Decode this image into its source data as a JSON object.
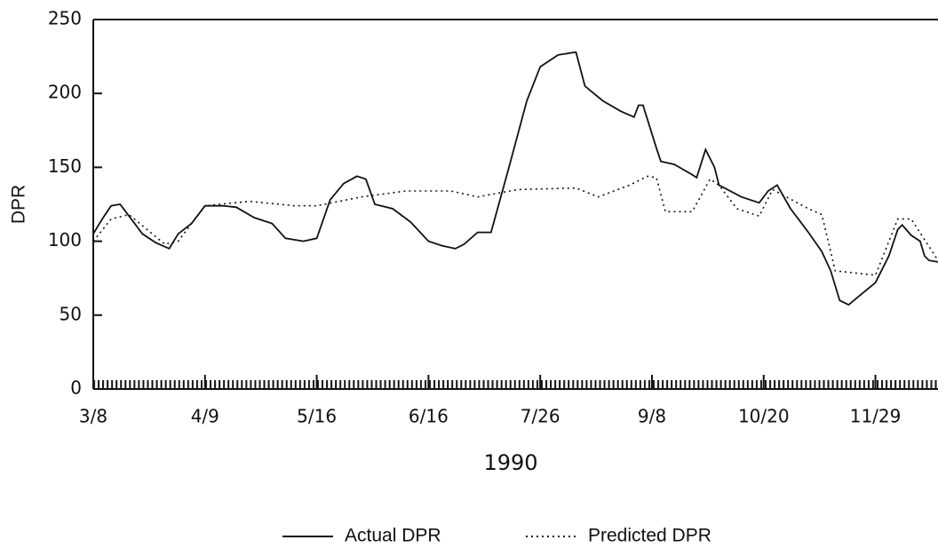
{
  "chart_data": {
    "type": "line",
    "xlabel": "1990",
    "ylabel": "DPR",
    "xlim": [
      0,
      189
    ],
    "ylim": [
      0,
      250
    ],
    "xticks": [
      {
        "value": 0,
        "label": "3/8"
      },
      {
        "value": 25,
        "label": "4/9"
      },
      {
        "value": 50,
        "label": "5/16"
      },
      {
        "value": 75,
        "label": "6/16"
      },
      {
        "value": 100,
        "label": "7/26"
      },
      {
        "value": 125,
        "label": "9/8"
      },
      {
        "value": 150,
        "label": "10/20"
      },
      {
        "value": 175,
        "label": "11/29"
      }
    ],
    "yticks": [
      0,
      50,
      100,
      150,
      200,
      250
    ],
    "series": [
      {
        "name": "Actual DPR",
        "color": "#111111",
        "style": "solid",
        "x": [
          0,
          2,
          4,
          6,
          8,
          11,
          14,
          17,
          19,
          22,
          25,
          29,
          32,
          36,
          40,
          43,
          47,
          50,
          53,
          56,
          59,
          61,
          63,
          67,
          71,
          75,
          78,
          81,
          83,
          86,
          89,
          93,
          97,
          100,
          104,
          108,
          110,
          114,
          118,
          121,
          122,
          123,
          126,
          127,
          130,
          134,
          135,
          137,
          139,
          140,
          145,
          149,
          151,
          153,
          156,
          160,
          163,
          165,
          167,
          169,
          171,
          175,
          178,
          180,
          181,
          183,
          185,
          186,
          187,
          189
        ],
        "values": [
          105,
          115,
          124,
          125,
          117,
          105,
          99,
          95,
          105,
          112,
          124,
          124,
          123,
          116,
          112,
          102,
          100,
          102,
          128,
          139,
          144,
          142,
          125,
          122,
          113,
          100,
          97,
          95,
          98,
          106,
          106,
          150,
          195,
          218,
          226,
          228,
          205,
          195,
          188,
          184,
          192,
          192,
          163,
          154,
          152,
          145,
          143,
          162,
          150,
          138,
          130,
          126,
          134,
          138,
          122,
          106,
          93,
          80,
          60,
          57,
          62,
          72,
          90,
          108,
          111,
          104,
          100,
          90,
          87,
          86
        ]
      },
      {
        "name": "Predicted DPR",
        "color": "#111111",
        "style": "dotted",
        "x": [
          0,
          4,
          8,
          12,
          16,
          19,
          25,
          35,
          45,
          50,
          60,
          70,
          80,
          86,
          95,
          108,
          113,
          120,
          124,
          126,
          128,
          134,
          138,
          140,
          144,
          149,
          152,
          160,
          163,
          166,
          175,
          180,
          183,
          189
        ],
        "values": [
          100,
          115,
          118,
          108,
          98,
          100,
          124,
          127,
          124,
          124,
          130,
          134,
          134,
          130,
          135,
          136,
          130,
          138,
          144,
          143,
          120,
          120,
          142,
          138,
          122,
          117,
          135,
          122,
          118,
          80,
          77,
          115,
          115,
          87
        ]
      }
    ]
  }
}
